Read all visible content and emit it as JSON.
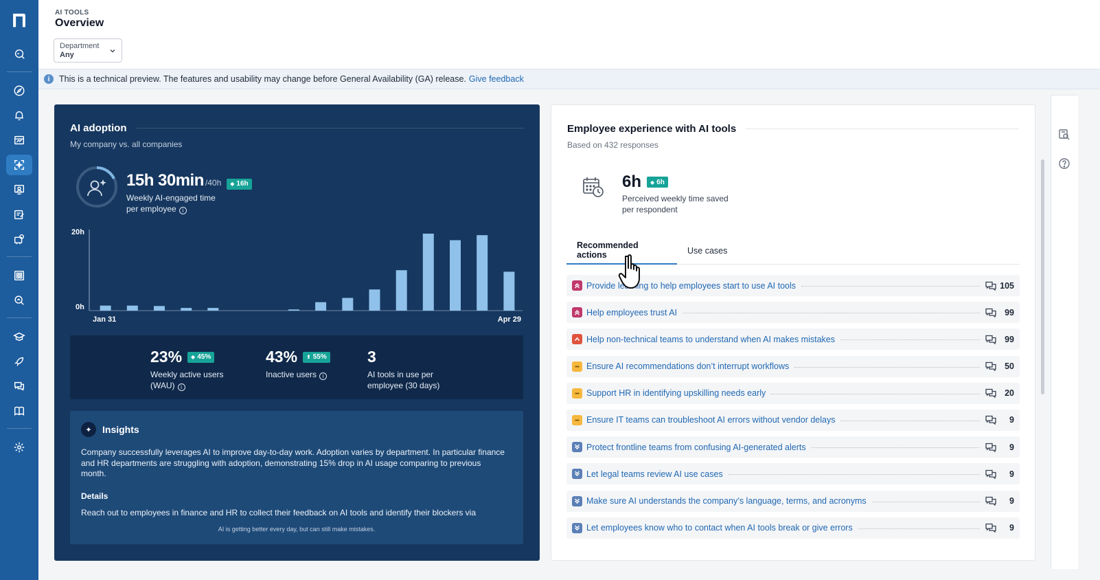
{
  "header": {
    "eyebrow": "AI TOOLS",
    "title": "Overview",
    "department_label": "Department",
    "department_value": "Any"
  },
  "banner": {
    "text": "This is a technical preview. The features and usability may change before General Availability (GA) release.",
    "link": "Give feedback"
  },
  "sidebar": {
    "items": [
      "search",
      "explore",
      "notifications",
      "dashboards",
      "ai-tools",
      "experience",
      "surveys",
      "apps",
      "grid",
      "insights-search",
      "learn",
      "launch",
      "chat",
      "docs",
      "settings"
    ]
  },
  "adoption": {
    "title": "AI adoption",
    "subtitle": "My company vs. all companies",
    "main_value": "15h 30min",
    "main_of": "/40h",
    "main_badge": "16h",
    "main_label_1": "Weekly AI-engaged time",
    "main_label_2": "per employee",
    "stats": [
      {
        "value": "23%",
        "badge": "45%",
        "label_1": "Weekly active users",
        "label_2": "(WAU)"
      },
      {
        "value": "43%",
        "badge": "55%",
        "label_1": "Inactive users",
        "label_2": ""
      },
      {
        "value": "3",
        "badge": "",
        "label_1": "AI tools in use per",
        "label_2": "employee (30 days)"
      }
    ]
  },
  "chart_data": {
    "type": "bar",
    "x_start_label": "Jan 31",
    "x_end_label": "Apr 29",
    "yticks": [
      "20h",
      "0h"
    ],
    "ylim": [
      0,
      20
    ],
    "values": [
      1.3,
      1.3,
      1.2,
      0.7,
      0.7,
      0,
      0,
      0.3,
      2.2,
      3.3,
      5.5,
      10.5,
      20,
      18.3,
      19.6,
      10.1
    ],
    "color": "#8fc1ea"
  },
  "insights": {
    "title": "Insights",
    "text": "Company successfully leverages AI to improve day-to-day work. Adoption varies by department. In particular finance and HR departments are struggling with adoption, demonstrating 15% drop in AI usage comparing to previous month.",
    "details_heading": "Details",
    "details_text": "Reach out to employees in finance and HR to collect their feedback on AI tools and identify their blockers via",
    "footer": "AI is getting better every day, but can still make mistakes."
  },
  "experience": {
    "title": "Employee experience with AI tools",
    "subtitle": "Based on 432 responses",
    "value": "6h",
    "badge": "6h",
    "label_1": "Perceived weekly time saved",
    "label_2": "per respondent",
    "tabs": [
      "Recommended actions",
      "Use cases"
    ],
    "actions": [
      {
        "text": "Provide learning to help employees start to use AI tools",
        "count": "105",
        "priority": "high"
      },
      {
        "text": "Help employees trust AI",
        "count": "99",
        "priority": "high"
      },
      {
        "text": "Help non-technical teams to understand when AI makes mistakes",
        "count": "99",
        "priority": "critical"
      },
      {
        "text": "Ensure AI recommendations don’t interrupt workflows",
        "count": "50",
        "priority": "medium"
      },
      {
        "text": "Support HR in identifying upskilling needs early",
        "count": "20",
        "priority": "medium"
      },
      {
        "text": "Ensure IT teams can troubleshoot AI errors without vendor delays",
        "count": "9",
        "priority": "medium"
      },
      {
        "text": "Protect frontline teams from confusing AI-generated alerts",
        "count": "9",
        "priority": "low"
      },
      {
        "text": "Let legal teams review AI use cases",
        "count": "9",
        "priority": "low"
      },
      {
        "text": "Make sure AI understands the company’s language, terms, and acronyms",
        "count": "9",
        "priority": "low"
      },
      {
        "text": "Let employees know who to contact when AI tools break or give errors",
        "count": "9",
        "priority": "low"
      }
    ]
  },
  "colors": {
    "sidebar": "#1d5c9d",
    "adoption_bg": "#16375f",
    "badge": "#17a398",
    "link": "#2169b3",
    "priority_high": "#c0396b",
    "priority_critical": "#e0533d",
    "priority_medium": "#f5b83d",
    "priority_low": "#5b7fb6"
  }
}
